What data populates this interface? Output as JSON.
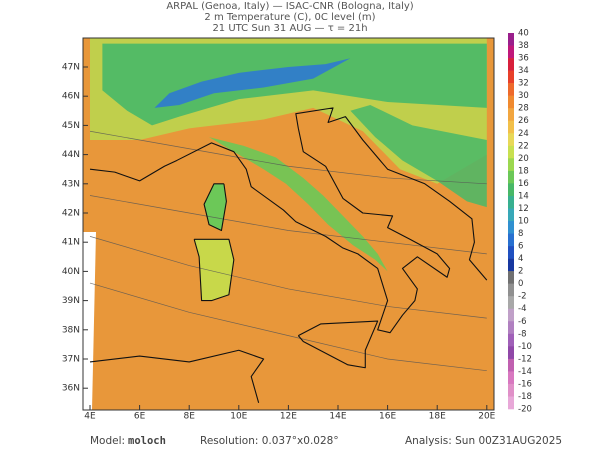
{
  "header": {
    "lines": [
      "ARPAL (Genoa, Italy)  —  ISAC-CNR (Bologna, Italy)",
      "2 m Temperature (C), 0C level (m)",
      "21 UTC Sun 31 AUG  —  τ = 21h"
    ]
  },
  "map": {
    "lon_labels": [
      "4E",
      "6E",
      "8E",
      "10E",
      "12E",
      "14E",
      "16E",
      "18E",
      "20E"
    ],
    "lat_labels": [
      "47N",
      "46N",
      "45N",
      "44N",
      "43N",
      "42N",
      "41N",
      "40N",
      "39N",
      "38N",
      "37N",
      "36N"
    ]
  },
  "colorbar": {
    "labels": [
      "40",
      "38",
      "36",
      "34",
      "32",
      "30",
      "28",
      "26",
      "24",
      "22",
      "20",
      "18",
      "16",
      "14",
      "12",
      "10",
      "8",
      "6",
      "4",
      "2",
      "0",
      "-2",
      "-4",
      "-6",
      "-8",
      "-10",
      "-12",
      "-14",
      "-16",
      "-18",
      "-20"
    ],
    "colors": [
      "#9a1f8c",
      "#c0187a",
      "#d8203c",
      "#e8402a",
      "#ee6a2c",
      "#f08a30",
      "#f2a640",
      "#f2c04a",
      "#e8d858",
      "#c8e050",
      "#9cd850",
      "#6cc858",
      "#48b868",
      "#38b090",
      "#38a8b8",
      "#3090d0",
      "#2870d0",
      "#2050c0",
      "#1838a0",
      "#707070",
      "#909090",
      "#a8a8a8",
      "#c0a0c8",
      "#b080c0",
      "#a060b8",
      "#9048a8",
      "#c060b0",
      "#d878c0",
      "#e090c8",
      "#e8a8d8"
    ]
  },
  "footer": {
    "model_label": "Model:",
    "model": "moloch",
    "resolution": "Resolution: 0.037°x0.028°",
    "analysis": "Analysis: Sun 00Z31AUG2025"
  }
}
